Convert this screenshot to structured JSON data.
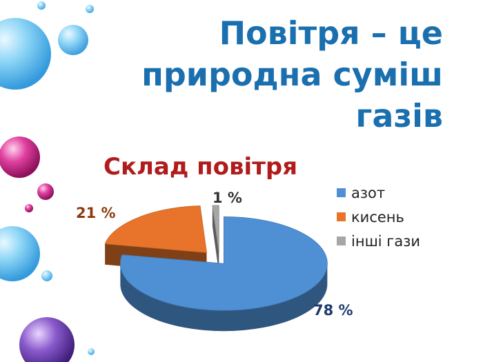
{
  "slide": {
    "title_lines": [
      "Повітря – це",
      "природна суміш",
      "газів"
    ]
  },
  "colors": {
    "title": "#1a6faf",
    "chart_title": "#b01c1c",
    "azot": "#4f8fd4",
    "kysen": "#e7742a",
    "inshi": "#a6a6a6",
    "label_azot": "#1f3a6e",
    "label_kysen": "#8b3a0f",
    "label_inshi": "#333333"
  },
  "chart_data": {
    "type": "pie",
    "title": "Склад повітря",
    "legend_position": "right",
    "slices": [
      {
        "name": "азот",
        "value": 78,
        "label": "78 %"
      },
      {
        "name": "кисень",
        "value": 21,
        "label": "21 %"
      },
      {
        "name": "інші  гази",
        "value": 1,
        "label": "1 %"
      }
    ]
  }
}
